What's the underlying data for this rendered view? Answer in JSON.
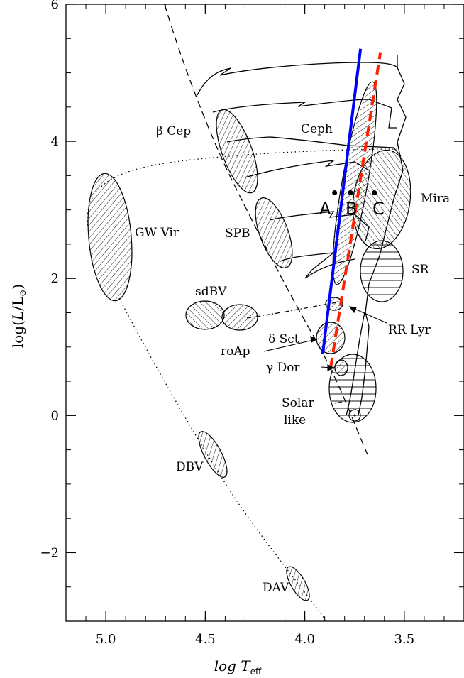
{
  "chart_data": {
    "type": "scatter",
    "title": "",
    "xlabel": "log T_eff",
    "ylabel": "log(L/L⊙)",
    "xlim": [
      5.2,
      3.2
    ],
    "ylim": [
      -3,
      6
    ],
    "x_ticks": [
      {
        "value": 5.0,
        "label": "5.0"
      },
      {
        "value": 4.5,
        "label": "4.5"
      },
      {
        "value": 4.0,
        "label": "4.0"
      },
      {
        "value": 3.5,
        "label": "3.5"
      }
    ],
    "y_ticks": [
      {
        "value": 6,
        "label": "6"
      },
      {
        "value": 4,
        "label": "4"
      },
      {
        "value": 2,
        "label": "2"
      },
      {
        "value": 0,
        "label": "0"
      },
      {
        "value": -2,
        "label": "−2"
      }
    ],
    "regions": [
      {
        "label": "β Cep",
        "cx": 4.36,
        "cy": 3.85,
        "hatch": "diag-right"
      },
      {
        "label": "SPB",
        "cx": 4.22,
        "cy": 2.65,
        "hatch": "diag-right"
      },
      {
        "label": "GW Vir",
        "cx": 4.96,
        "cy": 2.6,
        "hatch": "diag-right"
      },
      {
        "label": "sdBV",
        "cx": 4.42,
        "cy": 1.45,
        "hatch": "diag-left"
      },
      {
        "label": "DBV",
        "cx": 4.42,
        "cy": -0.6,
        "hatch": "diag-right"
      },
      {
        "label": "DAV",
        "cx": 4.06,
        "cy": -2.5,
        "hatch": "diag-right"
      },
      {
        "label": "Ceph",
        "cx": 3.74,
        "cy": 3.2,
        "hatch": "diag-right"
      },
      {
        "label": "Mira",
        "cx": 3.58,
        "cy": 3.15,
        "hatch": "diag-left"
      },
      {
        "label": "SR",
        "cx": 3.63,
        "cy": 2.1,
        "hatch": "horizontal"
      },
      {
        "label": "RR Lyr",
        "cx": 3.86,
        "cy": 1.65,
        "hatch": "diag-right"
      },
      {
        "label": "δ Sct",
        "cx": 3.88,
        "cy": 1.1,
        "hatch": "diag-right"
      },
      {
        "label": "roAp",
        "cx": 3.9,
        "cy": 1.0,
        "hatch": "diag-right"
      },
      {
        "label": "γ Dor",
        "cx": 3.84,
        "cy": 0.7,
        "hatch": "diag-right"
      },
      {
        "label": "Solar like",
        "cx": 3.77,
        "cy": 0.35,
        "hatch": "horizontal"
      }
    ],
    "points": [
      {
        "label": "A",
        "x": 3.85,
        "y": 3.25
      },
      {
        "label": "B",
        "x": 3.77,
        "y": 3.25
      },
      {
        "label": "C",
        "x": 3.65,
        "y": 3.25
      }
    ],
    "lines": [
      {
        "name": "blue edge",
        "color": "#0000ff",
        "style": "solid",
        "x": [
          3.91,
          3.72
        ],
        "y": [
          0.9,
          5.35
        ]
      },
      {
        "name": "red edge",
        "color": "#ff2200",
        "style": "dashed",
        "x": [
          3.87,
          3.62
        ],
        "y": [
          0.7,
          5.3
        ]
      }
    ],
    "grid": false,
    "legend": "none"
  },
  "annotations": {
    "region_labels": {
      "beta_cep": "β Cep",
      "ceph": "Ceph",
      "mira": "Mira",
      "gw_vir": "GW Vir",
      "spb": "SPB",
      "sr": "SR",
      "sdbv": "sdBV",
      "rr_lyr": "RR Lyr",
      "delta_sct": "δ Sct",
      "roap": "roAp",
      "gamma_dor": "γ Dor",
      "solar_like_1": "Solar",
      "solar_like_2": "like",
      "dbv": "DBV",
      "dav": "DAV"
    },
    "point_labels": {
      "a": "A",
      "b": "B",
      "c": "C"
    },
    "axis": {
      "x_main": "log T",
      "x_sub": "eff",
      "y_main": "log(",
      "y_L": "L",
      "y_mid": "/L",
      "y_close": ")"
    }
  },
  "colors": {
    "blue_edge": "#0000ff",
    "red_edge": "#ff2200",
    "ink": "#000000"
  }
}
